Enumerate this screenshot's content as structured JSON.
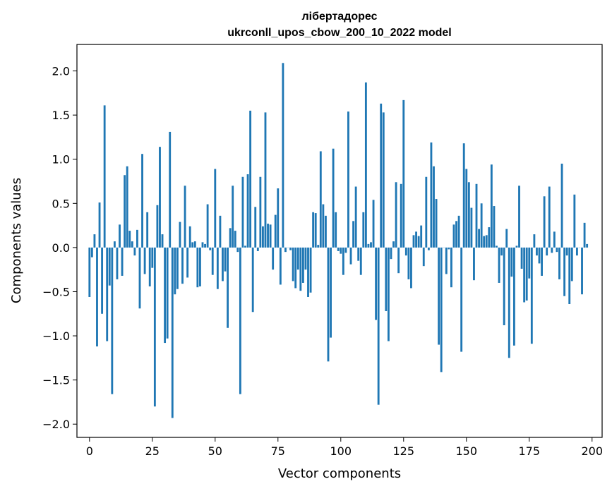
{
  "chart_data": {
    "type": "bar",
    "title_line1": "лібертадорес",
    "title_line2": "ukrconll_upos_cbow_200_10_2022 model",
    "xlabel": "Vector components",
    "ylabel": "Components values",
    "xlim": [
      -5,
      204
    ],
    "ylim": [
      -2.15,
      2.3
    ],
    "x_ticks": [
      0,
      25,
      50,
      75,
      100,
      125,
      150,
      175,
      200
    ],
    "x_tick_labels": [
      "0",
      "25",
      "50",
      "75",
      "100",
      "125",
      "150",
      "175",
      "200"
    ],
    "y_ticks": [
      2.0,
      1.5,
      1.0,
      0.5,
      0.0,
      -0.5,
      -1.0,
      -1.5,
      -2.0
    ],
    "y_tick_labels": [
      "2.0",
      "1.5",
      "1.0",
      "0.5",
      "0.0",
      "−0.5",
      "−1.0",
      "−1.5",
      "−2.0"
    ],
    "bar_color": "#1f77b4",
    "grid": false,
    "values": [
      -0.56,
      -0.11,
      0.15,
      -1.12,
      0.51,
      -0.75,
      1.61,
      -1.06,
      -0.43,
      -1.66,
      0.07,
      -0.36,
      0.26,
      -0.32,
      0.82,
      0.92,
      0.19,
      0.07,
      -0.09,
      0.2,
      -0.69,
      1.06,
      -0.3,
      0.4,
      -0.44,
      -0.23,
      -1.8,
      0.48,
      1.14,
      0.15,
      -1.08,
      -1.03,
      1.31,
      -1.93,
      -0.53,
      -0.47,
      0.29,
      -0.41,
      0.7,
      -0.34,
      0.24,
      0.06,
      0.07,
      -0.45,
      -0.44,
      0.06,
      0.04,
      0.49,
      -0.03,
      -0.31,
      0.89,
      -0.47,
      0.36,
      -0.38,
      -0.27,
      -0.91,
      0.22,
      0.7,
      0.19,
      -0.05,
      -1.66,
      0.8,
      0.02,
      0.83,
      1.55,
      -0.73,
      0.46,
      -0.04,
      0.8,
      0.24,
      1.53,
      0.27,
      0.26,
      -0.25,
      0.37,
      0.67,
      -0.42,
      2.09,
      -0.05,
      0.0,
      -0.03,
      -0.38,
      -0.46,
      -0.25,
      -0.49,
      -0.4,
      -0.25,
      -0.56,
      -0.51,
      0.4,
      0.39,
      0.03,
      1.09,
      0.49,
      0.36,
      -1.29,
      -1.02,
      1.12,
      0.4,
      -0.04,
      -0.07,
      -0.31,
      -0.06,
      1.54,
      -0.19,
      0.3,
      0.69,
      -0.15,
      -0.31,
      0.4,
      1.87,
      0.04,
      0.06,
      0.54,
      -0.82,
      -1.78,
      1.63,
      1.53,
      -0.72,
      -1.06,
      -0.13,
      0.07,
      0.74,
      -0.29,
      0.72,
      1.67,
      -0.09,
      -0.36,
      -0.46,
      0.14,
      0.18,
      0.13,
      0.25,
      -0.21,
      0.8,
      -0.03,
      1.19,
      0.92,
      0.55,
      -1.1,
      -1.41,
      0.0,
      -0.3,
      -0.02,
      -0.45,
      0.26,
      0.3,
      0.36,
      -1.18,
      1.18,
      0.89,
      0.74,
      0.45,
      -0.37,
      0.72,
      0.21,
      0.5,
      0.13,
      0.14,
      0.23,
      0.94,
      0.47,
      0.02,
      -0.4,
      -0.09,
      -0.88,
      0.21,
      -1.25,
      -0.33,
      -1.11,
      0.02,
      0.7,
      -0.24,
      -0.62,
      -0.6,
      -0.35,
      -1.09,
      0.15,
      -0.09,
      -0.18,
      -0.32,
      0.58,
      -0.09,
      0.69,
      -0.06,
      0.18,
      -0.05,
      -0.36,
      0.95,
      -0.55,
      -0.09,
      -0.64,
      -0.38,
      0.6,
      -0.09,
      0.0,
      -0.53,
      0.28,
      0.04
    ]
  }
}
